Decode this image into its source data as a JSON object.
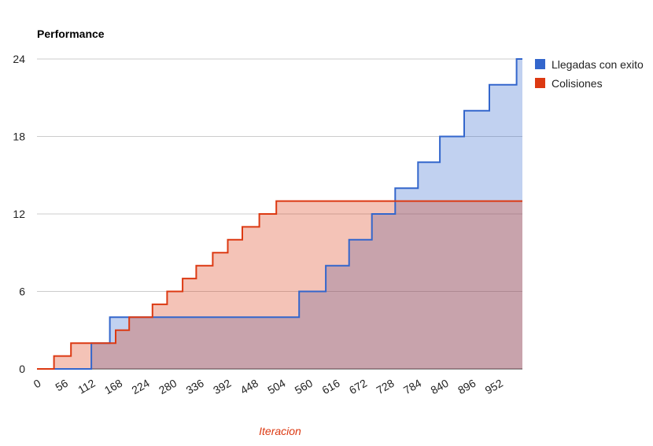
{
  "chart_data": {
    "type": "area",
    "title": "Performance",
    "xlabel": "Iteracion",
    "ylabel": "",
    "xlim": [
      0,
      1000
    ],
    "ylim": [
      0,
      24
    ],
    "yticks": [
      0,
      6,
      12,
      18,
      24
    ],
    "xticks": [
      0,
      56,
      112,
      168,
      224,
      280,
      336,
      392,
      448,
      504,
      560,
      616,
      672,
      728,
      784,
      840,
      896,
      952
    ],
    "grid": true,
    "legend_position": "right",
    "series": [
      {
        "name": "Llegadas con exito",
        "color": "#3366cc",
        "points": [
          [
            0,
            0
          ],
          [
            112,
            0
          ],
          [
            112,
            2
          ],
          [
            150,
            2
          ],
          [
            150,
            4
          ],
          [
            540,
            4
          ],
          [
            540,
            6
          ],
          [
            595,
            6
          ],
          [
            595,
            8
          ],
          [
            643,
            8
          ],
          [
            643,
            10
          ],
          [
            690,
            10
          ],
          [
            690,
            12
          ],
          [
            738,
            12
          ],
          [
            738,
            14
          ],
          [
            785,
            14
          ],
          [
            785,
            16
          ],
          [
            830,
            16
          ],
          [
            830,
            18
          ],
          [
            880,
            18
          ],
          [
            880,
            20
          ],
          [
            932,
            20
          ],
          [
            932,
            22
          ],
          [
            988,
            22
          ],
          [
            988,
            24
          ],
          [
            1000,
            24
          ]
        ]
      },
      {
        "name": "Colisiones",
        "color": "#dc3912",
        "points": [
          [
            0,
            0
          ],
          [
            35,
            0
          ],
          [
            35,
            1
          ],
          [
            70,
            1
          ],
          [
            70,
            2
          ],
          [
            162,
            2
          ],
          [
            162,
            3
          ],
          [
            190,
            3
          ],
          [
            190,
            4
          ],
          [
            238,
            4
          ],
          [
            238,
            5
          ],
          [
            268,
            5
          ],
          [
            268,
            6
          ],
          [
            300,
            6
          ],
          [
            300,
            7
          ],
          [
            328,
            7
          ],
          [
            328,
            8
          ],
          [
            362,
            8
          ],
          [
            362,
            9
          ],
          [
            393,
            9
          ],
          [
            393,
            10
          ],
          [
            423,
            10
          ],
          [
            423,
            11
          ],
          [
            458,
            11
          ],
          [
            458,
            12
          ],
          [
            493,
            12
          ],
          [
            493,
            13
          ],
          [
            1000,
            13
          ]
        ]
      }
    ]
  }
}
